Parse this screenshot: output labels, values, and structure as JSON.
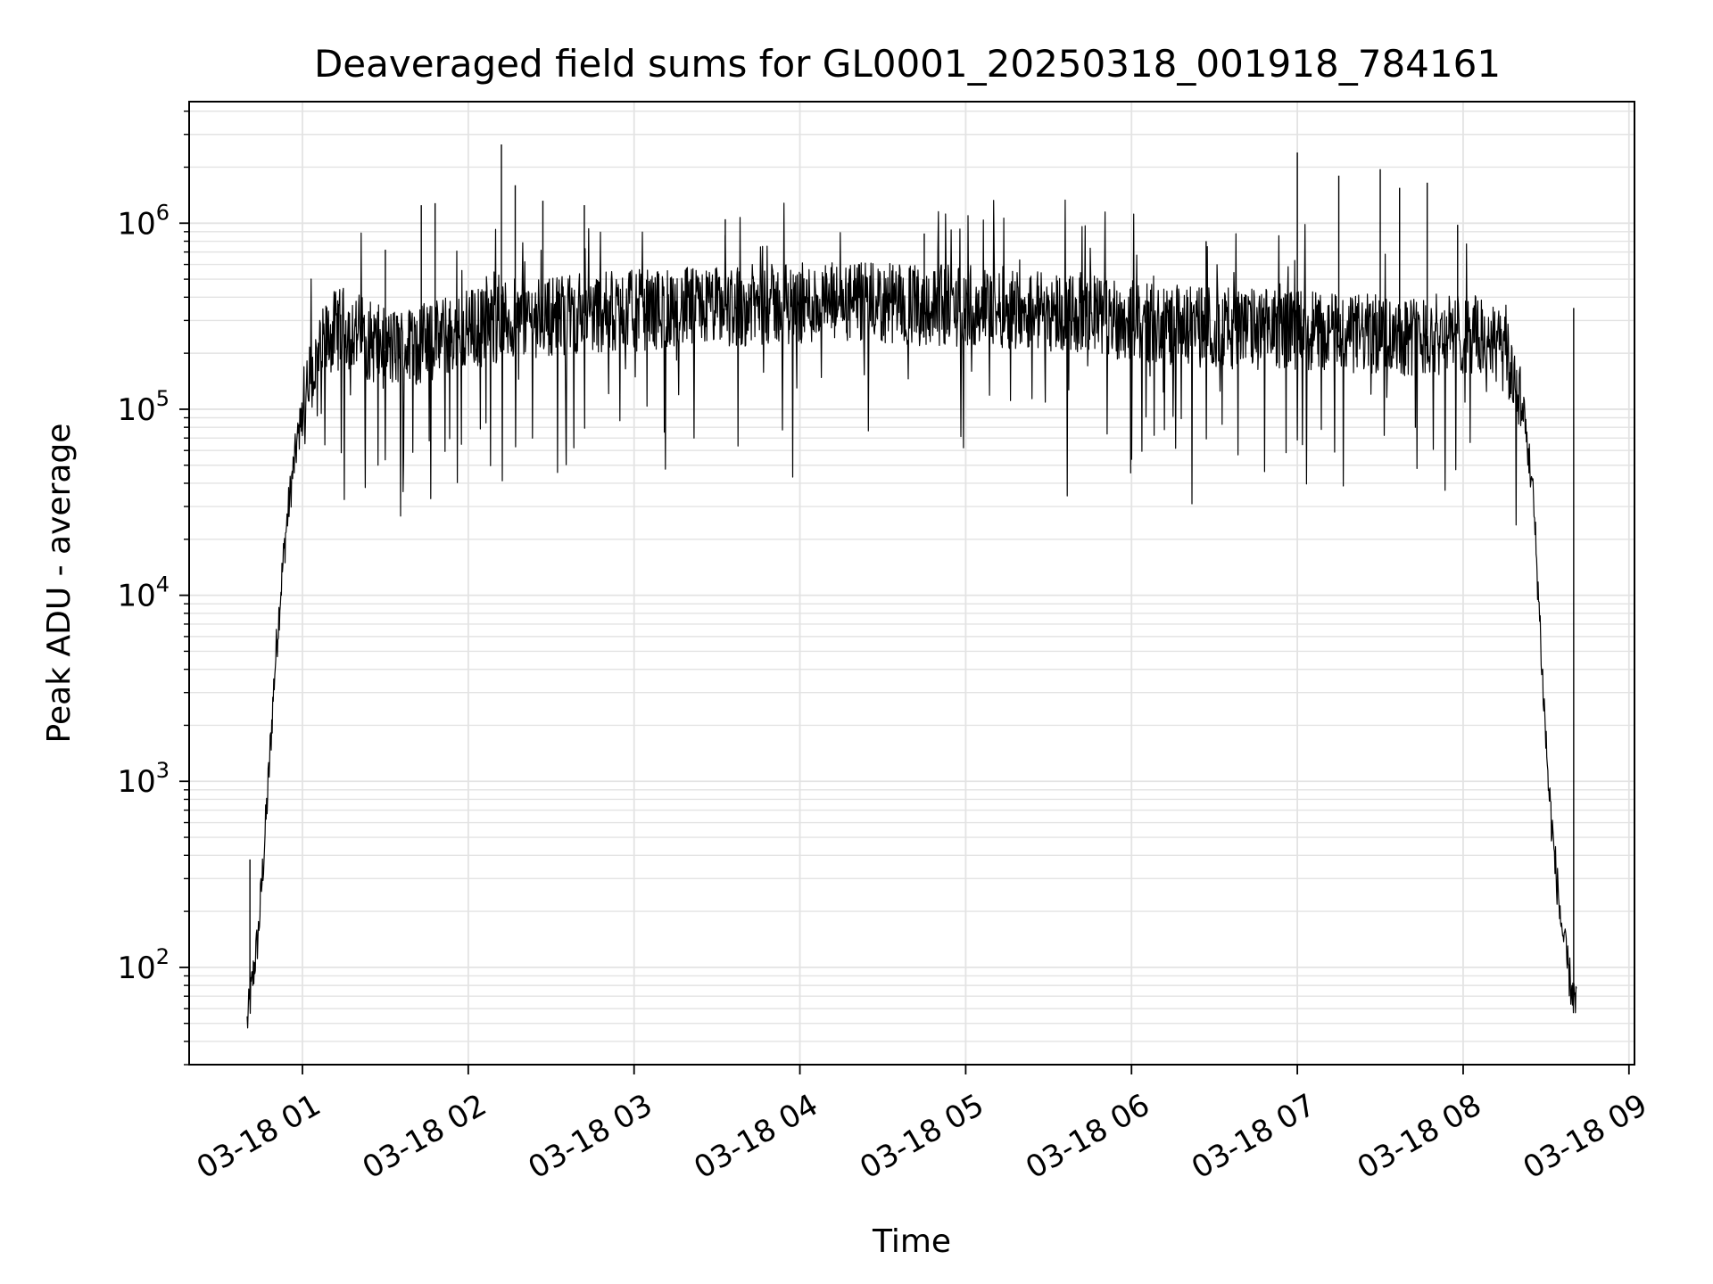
{
  "chart_data": {
    "type": "line",
    "title": "Deaveraged field sums for GL0001_20250318_001918_784161",
    "xlabel": "Time",
    "ylabel": "Peak ADU - average",
    "y_scale": "log",
    "grid": true,
    "grid_minor": true,
    "line_color": "#000000",
    "grid_color": "#e3e3e3",
    "xlim": [
      "2025-03-18 00:19",
      "2025-03-18 09:02"
    ],
    "ylim": [
      30,
      4500000
    ],
    "x_ticks": [
      {
        "label": "03-18 01",
        "value": "2025-03-18 01:00"
      },
      {
        "label": "03-18 02",
        "value": "2025-03-18 02:00"
      },
      {
        "label": "03-18 03",
        "value": "2025-03-18 03:00"
      },
      {
        "label": "03-18 04",
        "value": "2025-03-18 04:00"
      },
      {
        "label": "03-18 05",
        "value": "2025-03-18 05:00"
      },
      {
        "label": "03-18 06",
        "value": "2025-03-18 06:00"
      },
      {
        "label": "03-18 07",
        "value": "2025-03-18 07:00"
      },
      {
        "label": "03-18 08",
        "value": "2025-03-18 08:00"
      },
      {
        "label": "03-18 09",
        "value": "2025-03-18 09:00"
      }
    ],
    "y_ticks": [
      {
        "base": "10",
        "exp": "2",
        "value": 100
      },
      {
        "base": "10",
        "exp": "3",
        "value": 1000
      },
      {
        "base": "10",
        "exp": "4",
        "value": 10000
      },
      {
        "base": "10",
        "exp": "5",
        "value": 100000
      },
      {
        "base": "10",
        "exp": "6",
        "value": 1000000
      }
    ],
    "series": [
      {
        "x": [
          "2025-03-18 00:40",
          "2025-03-18 00:44",
          "2025-03-18 00:46",
          "2025-03-18 00:48",
          "2025-03-18 00:50",
          "2025-03-18 00:52",
          "2025-03-18 00:54",
          "2025-03-18 00:56",
          "2025-03-18 00:58",
          "2025-03-18 01:00",
          "2025-03-18 01:02",
          "2025-03-18 01:04",
          "2025-03-18 01:06",
          "2025-03-18 01:08",
          "2025-03-18 01:10",
          "2025-03-18 01:12",
          "2025-03-18 01:15",
          "2025-03-18 01:20",
          "2025-03-18 01:25",
          "2025-03-18 01:30",
          "2025-03-18 01:40",
          "2025-03-18 01:50",
          "2025-03-18 02:00",
          "2025-03-18 02:15",
          "2025-03-18 02:30",
          "2025-03-18 02:45",
          "2025-03-18 03:00",
          "2025-03-18 03:20",
          "2025-03-18 03:40",
          "2025-03-18 04:00",
          "2025-03-18 04:20",
          "2025-03-18 04:40",
          "2025-03-18 05:00",
          "2025-03-18 05:20",
          "2025-03-18 05:40",
          "2025-03-18 06:00",
          "2025-03-18 06:20",
          "2025-03-18 06:40",
          "2025-03-18 07:00",
          "2025-03-18 07:15",
          "2025-03-18 07:30",
          "2025-03-18 07:45",
          "2025-03-18 08:00",
          "2025-03-18 08:05",
          "2025-03-18 08:10",
          "2025-03-18 08:13",
          "2025-03-18 08:16",
          "2025-03-18 08:19",
          "2025-03-18 08:22",
          "2025-03-18 08:25",
          "2025-03-18 08:27",
          "2025-03-18 08:29",
          "2025-03-18 08:31",
          "2025-03-18 08:33",
          "2025-03-18 08:35",
          "2025-03-18 08:37",
          "2025-03-18 08:39",
          "2025-03-18 08:41"
        ],
        "y": [
          50,
          150,
          400,
          1200,
          4000,
          10000,
          22000,
          40000,
          65000,
          95000,
          125000,
          160000,
          190000,
          220000,
          250000,
          265000,
          275000,
          260000,
          230000,
          210000,
          220000,
          240000,
          270000,
          300000,
          320000,
          330000,
          340000,
          350000,
          360000,
          370000,
          370000,
          365000,
          360000,
          350000,
          330000,
          300000,
          280000,
          270000,
          270000,
          260000,
          250000,
          250000,
          255000,
          250000,
          230000,
          210000,
          180000,
          140000,
          90000,
          40000,
          12000,
          3000,
          900,
          400,
          200,
          120,
          80,
          60
        ]
      }
    ],
    "spikes": [
      {
        "x": "2025-03-18 00:41",
        "y": 380
      },
      {
        "x": "2025-03-18 01:30",
        "y": 720000
      },
      {
        "x": "2025-03-18 01:43",
        "y": 1250000
      },
      {
        "x": "2025-03-18 01:48",
        "y": 1280000
      },
      {
        "x": "2025-03-18 02:12",
        "y": 2650000
      },
      {
        "x": "2025-03-18 02:17",
        "y": 1600000
      },
      {
        "x": "2025-03-18 02:27",
        "y": 1320000
      },
      {
        "x": "2025-03-18 02:42",
        "y": 1250000
      },
      {
        "x": "2025-03-18 03:33",
        "y": 1050000
      },
      {
        "x": "2025-03-18 04:45",
        "y": 880000
      },
      {
        "x": "2025-03-18 06:27",
        "y": 800000
      },
      {
        "x": "2025-03-18 07:00",
        "y": 2400000
      },
      {
        "x": "2025-03-18 07:15",
        "y": 1800000
      },
      {
        "x": "2025-03-18 07:30",
        "y": 1950000
      },
      {
        "x": "2025-03-18 07:37",
        "y": 1550000
      },
      {
        "x": "2025-03-18 07:47",
        "y": 1650000
      },
      {
        "x": "2025-03-18 07:58",
        "y": 980000
      },
      {
        "x": "2025-03-18 08:40",
        "y": 350000
      }
    ]
  }
}
